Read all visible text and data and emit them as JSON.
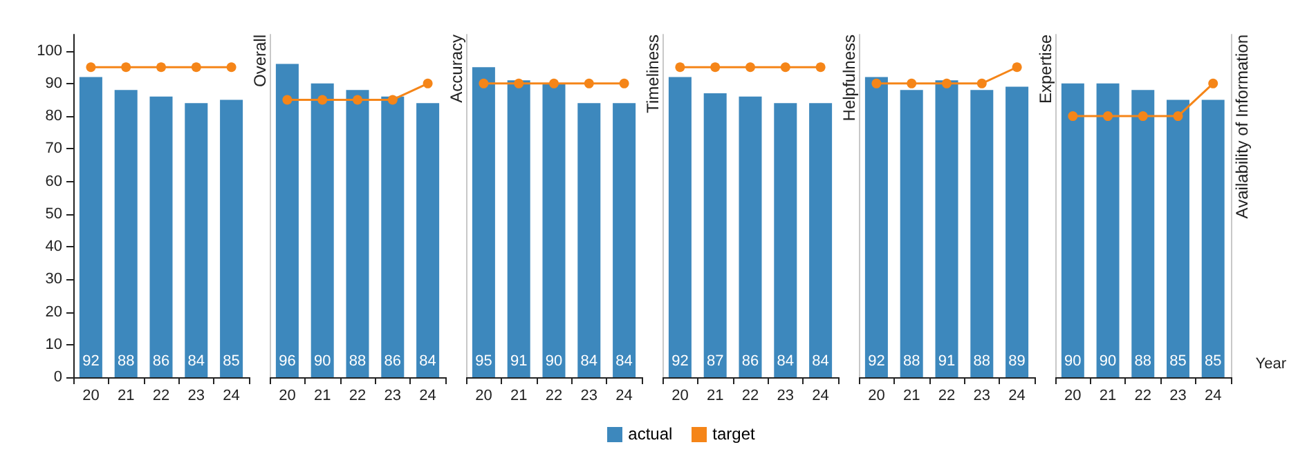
{
  "chart_data": [
    {
      "type": "bar",
      "title": "Overall",
      "categories": [
        "20",
        "21",
        "22",
        "23",
        "24"
      ],
      "ylim": [
        0,
        105
      ],
      "yticks": [
        0,
        10,
        20,
        30,
        40,
        50,
        60,
        70,
        80,
        90,
        100
      ],
      "legend": "bottom",
      "marker": "circle",
      "series": [
        {
          "name": "actual",
          "color": "#3d88bd",
          "values": [
            92,
            88,
            86,
            84,
            85
          ],
          "value_labels": [
            "92",
            "88",
            "86",
            "84",
            "85"
          ]
        },
        {
          "name": "target",
          "type": "line",
          "color": "#f58518",
          "values": [
            95,
            95,
            95,
            95,
            95
          ]
        }
      ]
    },
    {
      "type": "bar",
      "title": "Accuracy",
      "categories": [
        "20",
        "21",
        "22",
        "23",
        "24"
      ],
      "ylim": [
        0,
        105
      ],
      "yticks": [
        0,
        10,
        20,
        30,
        40,
        50,
        60,
        70,
        80,
        90,
        100
      ],
      "tick_labels": "x",
      "marker": "circle",
      "series": [
        {
          "color": "#3d88bd",
          "values": [
            96,
            90,
            88,
            86,
            84
          ],
          "value_labels": [
            "96",
            "90",
            "88",
            "86",
            "84"
          ]
        },
        {
          "type": "line",
          "color": "#f58518",
          "values": [
            85,
            85,
            85,
            85,
            90
          ]
        }
      ]
    },
    {
      "type": "bar",
      "title": "Timeliness",
      "categories": [
        "20",
        "21",
        "22",
        "23",
        "24"
      ],
      "ylim": [
        0,
        105
      ],
      "yticks": [
        0,
        10,
        20,
        30,
        40,
        50,
        60,
        70,
        80,
        90,
        100
      ],
      "tick_labels": "x",
      "marker": "circle",
      "series": [
        {
          "color": "#3d88bd",
          "values": [
            95,
            91,
            90,
            84,
            84
          ],
          "value_labels": [
            "95",
            "91",
            "90",
            "84",
            "84"
          ]
        },
        {
          "type": "line",
          "color": "#f58518",
          "values": [
            90,
            90,
            90,
            90,
            90
          ]
        }
      ]
    },
    {
      "type": "bar",
      "title": "Helpfulness",
      "categories": [
        "20",
        "21",
        "22",
        "23",
        "24"
      ],
      "ylim": [
        0,
        105
      ],
      "yticks": [
        0,
        10,
        20,
        30,
        40,
        50,
        60,
        70,
        80,
        90,
        100
      ],
      "tick_labels": "x",
      "marker": "circle",
      "series": [
        {
          "color": "#3d88bd",
          "values": [
            92,
            87,
            86,
            84,
            84
          ],
          "value_labels": [
            "92",
            "87",
            "86",
            "84",
            "84"
          ]
        },
        {
          "type": "line",
          "color": "#f58518",
          "values": [
            95,
            95,
            95,
            95,
            95
          ]
        }
      ]
    },
    {
      "type": "bar",
      "title": "Expertise",
      "categories": [
        "20",
        "21",
        "22",
        "23",
        "24"
      ],
      "ylim": [
        0,
        105
      ],
      "yticks": [
        0,
        10,
        20,
        30,
        40,
        50,
        60,
        70,
        80,
        90,
        100
      ],
      "tick_labels": "x",
      "marker": "circle",
      "series": [
        {
          "color": "#3d88bd",
          "values": [
            92,
            88,
            91,
            88,
            89
          ],
          "value_labels": [
            "92",
            "88",
            "91",
            "88",
            "89"
          ]
        },
        {
          "type": "line",
          "color": "#f58518",
          "values": [
            90,
            90,
            90,
            90,
            95
          ]
        }
      ]
    },
    {
      "type": "bar",
      "title": "Availability of Information",
      "xlabel": "Year",
      "categories": [
        "20",
        "21",
        "22",
        "23",
        "24"
      ],
      "ylim": [
        0,
        105
      ],
      "yticks": [
        0,
        10,
        20,
        30,
        40,
        50,
        60,
        70,
        80,
        90,
        100
      ],
      "tick_labels": "x",
      "marker": "circle",
      "series": [
        {
          "color": "#3d88bd",
          "values": [
            90,
            90,
            88,
            85,
            85
          ],
          "value_labels": [
            "90",
            "90",
            "88",
            "85",
            "85"
          ]
        },
        {
          "type": "line",
          "color": "#f58518",
          "values": [
            80,
            80,
            80,
            80,
            90
          ]
        }
      ]
    }
  ]
}
